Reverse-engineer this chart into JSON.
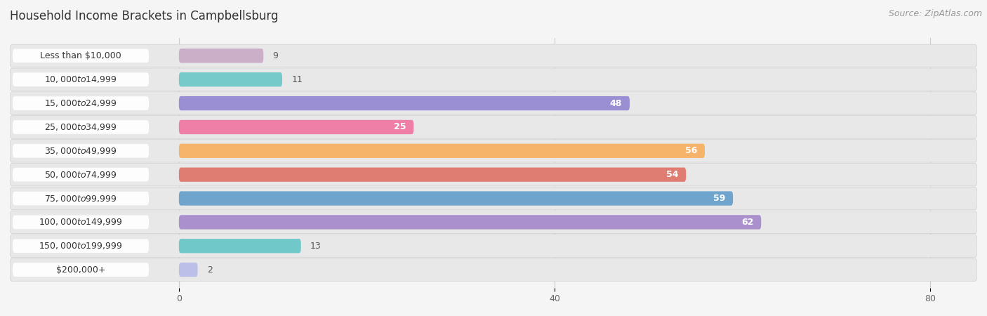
{
  "title": "Household Income Brackets in Campbellsburg",
  "source": "Source: ZipAtlas.com",
  "categories": [
    "Less than $10,000",
    "$10,000 to $14,999",
    "$15,000 to $24,999",
    "$25,000 to $34,999",
    "$35,000 to $49,999",
    "$50,000 to $74,999",
    "$75,000 to $99,999",
    "$100,000 to $149,999",
    "$150,000 to $199,999",
    "$200,000+"
  ],
  "values": [
    9,
    11,
    48,
    25,
    56,
    54,
    59,
    62,
    13,
    2
  ],
  "bar_colors": [
    "#cbaec8",
    "#76caca",
    "#9b8fd4",
    "#f07fa8",
    "#f5b46a",
    "#e07d72",
    "#6fa5cc",
    "#aa90cc",
    "#70c8c8",
    "#bcc0e8"
  ],
  "xlim_left": -18,
  "xlim_right": 85,
  "xticks": [
    0,
    40,
    80
  ],
  "background_color": "#f5f5f5",
  "row_bg_color": "#e8e8e8",
  "title_fontsize": 12,
  "source_fontsize": 9,
  "label_fontsize": 9,
  "value_threshold": 15,
  "bar_height": 0.6
}
